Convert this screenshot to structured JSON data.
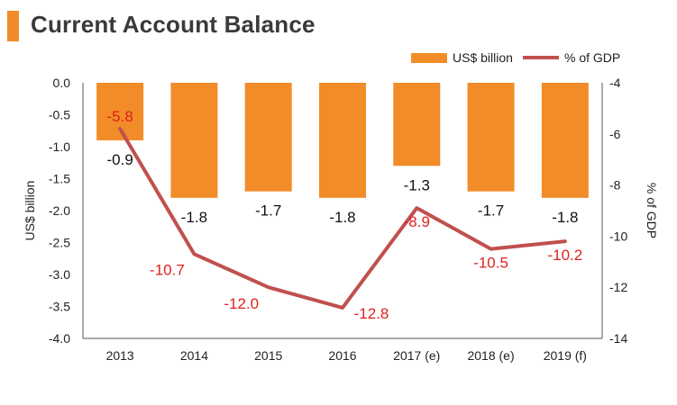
{
  "title": "Current Account Balance",
  "colors": {
    "bar": "#f28c28",
    "line": "#c0504d",
    "accent": "#f28c28",
    "label_red": "#e02020"
  },
  "chart_data": {
    "type": "bar+line",
    "categories": [
      "2013",
      "2014",
      "2015",
      "2016",
      "2017 (e)",
      "2018 (e)",
      "2019 (f)"
    ],
    "series": [
      {
        "name": "US$ billion",
        "type": "bar",
        "axis": "left",
        "values": [
          -0.9,
          -1.8,
          -1.7,
          -1.8,
          -1.3,
          -1.7,
          -1.8
        ]
      },
      {
        "name": "% of GDP",
        "type": "line",
        "axis": "right",
        "values": [
          -5.8,
          -10.7,
          -12.0,
          -12.8,
          -8.9,
          -10.5,
          -10.2
        ]
      }
    ],
    "bar_labels": [
      "-0.9",
      "-1.8",
      "-1.7",
      "-1.8",
      "-1.3",
      "-1.7",
      "-1.8"
    ],
    "line_labels": [
      "-5.8",
      "-10.7",
      "-12.0",
      "-12.8",
      "-8.9",
      "-10.5",
      "-10.2"
    ],
    "ylabel": "US$ billion",
    "y2label": "% of GDP",
    "ylim": [
      -4.0,
      0.0
    ],
    "y2lim": [
      -14,
      -4
    ],
    "yticks": [
      "0.0",
      "-0.5",
      "-1.0",
      "-1.5",
      "-2.0",
      "-2.5",
      "-3.0",
      "-3.5",
      "-4.0"
    ],
    "y2ticks": [
      "-4",
      "-6",
      "-8",
      "-10",
      "-12",
      "-14"
    ],
    "legend_position": "top-right",
    "grid": false
  }
}
